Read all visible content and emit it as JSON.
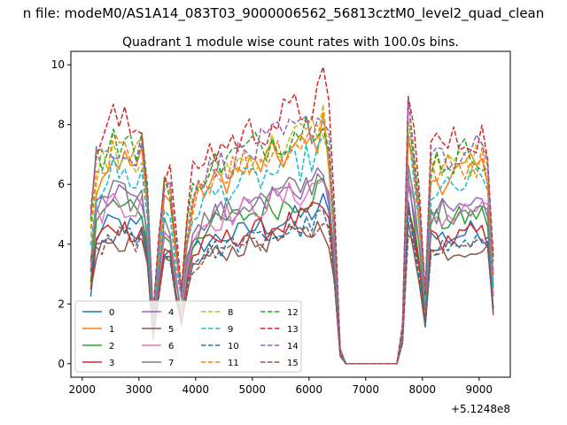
{
  "figure": {
    "suptitle": "n file: modeM0/AS1A14_083T03_9000006562_56813cztM0_level2_quad_clean",
    "title": "Quadrant 1 module wise count rates with 100.0s bins.",
    "offset_label": "+5.1248e8"
  },
  "chart_data": {
    "type": "line",
    "title": "Quadrant 1 module wise count rates with 100.0s bins.",
    "xlabel": "",
    "ylabel": "",
    "x_offset": 512480000,
    "xlim": [
      1800,
      9550
    ],
    "ylim": [
      -0.45,
      10.45
    ],
    "xticks": [
      2000,
      3000,
      4000,
      5000,
      6000,
      7000,
      8000,
      9000
    ],
    "yticks": [
      0,
      2,
      4,
      6,
      8,
      10
    ],
    "grid": false,
    "legend": {
      "placement": "lower-left",
      "columns": 4
    },
    "anchors": {
      "x": [
        2150,
        2250,
        2550,
        2950,
        3100,
        3250,
        3350,
        3500,
        3600,
        3750,
        3900,
        4100,
        4500,
        5000,
        5500,
        6000,
        6300,
        6400,
        6550,
        6650,
        6700,
        7550,
        7650,
        7750,
        7900,
        8050,
        8150,
        8500,
        9000,
        9150,
        9250
      ],
      "shape": [
        0.4,
        0.85,
        0.95,
        0.9,
        0.95,
        0.2,
        0.5,
        0.9,
        0.6,
        0.3,
        0.7,
        0.8,
        0.85,
        0.9,
        0.95,
        1.0,
        1.08,
        0.85,
        0.06,
        0.0,
        0.0,
        0.0,
        0.15,
        1.05,
        0.8,
        0.3,
        0.85,
        0.85,
        0.9,
        0.85,
        0.4
      ]
    },
    "series": [
      {
        "name": "0",
        "color": "#1f77b4",
        "dash": "solid",
        "level": 5.0,
        "values": []
      },
      {
        "name": "1",
        "color": "#ff7f0e",
        "dash": "solid",
        "level": 7.3,
        "values": []
      },
      {
        "name": "2",
        "color": "#2ca02c",
        "dash": "solid",
        "level": 5.6,
        "values": []
      },
      {
        "name": "3",
        "color": "#d62728",
        "dash": "solid",
        "level": 4.9,
        "values": []
      },
      {
        "name": "4",
        "color": "#9467bd",
        "dash": "solid",
        "level": 6.0,
        "values": []
      },
      {
        "name": "5",
        "color": "#8c564b",
        "dash": "solid",
        "level": 4.4,
        "values": []
      },
      {
        "name": "6",
        "color": "#e377c2",
        "dash": "solid",
        "level": 5.8,
        "values": []
      },
      {
        "name": "7",
        "color": "#7f7f7f",
        "dash": "solid",
        "level": 6.0,
        "values": []
      },
      {
        "name": "8",
        "color": "#bcbd22",
        "dash": "dashed",
        "level": 7.7,
        "values": []
      },
      {
        "name": "9",
        "color": "#17becf",
        "dash": "dashed",
        "level": 6.8,
        "values": []
      },
      {
        "name": "10",
        "color": "#1f77b4",
        "dash": "dashed",
        "level": 4.6,
        "values": []
      },
      {
        "name": "11",
        "color": "#ff7f0e",
        "dash": "dashed",
        "level": 7.6,
        "values": []
      },
      {
        "name": "12",
        "color": "#2ca02c",
        "dash": "dashed",
        "level": 8.0,
        "values": []
      },
      {
        "name": "13",
        "color": "#d62728",
        "dash": "dashed",
        "level": 8.6,
        "values": []
      },
      {
        "name": "14",
        "color": "#9467bd",
        "dash": "dashed",
        "level": 7.9,
        "values": []
      },
      {
        "name": "15",
        "color": "#8c564b",
        "dash": "dashed",
        "level": 4.5,
        "values": []
      }
    ]
  }
}
